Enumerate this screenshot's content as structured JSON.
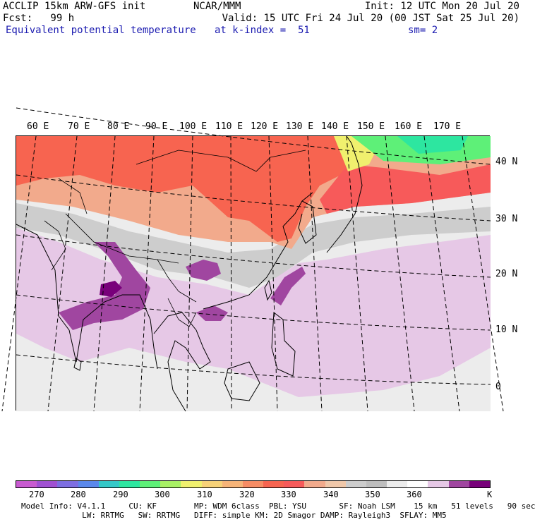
{
  "header": {
    "line1_left": "ACCLIP 15km ARW-GFS init",
    "line1_mid": "NCAR/MMM",
    "line1_right": "Init: 12 UTC Mon 20 Jul 20",
    "line2_left": "Fcst:   99 h",
    "line2_right": "Valid: 15 UTC Fri 24 Jul 20 (00 JST Sat 25 Jul 20)",
    "line3_field": "Equivalent potential temperature",
    "line3_level": "at k-index =  51",
    "line3_smooth": "sm= 2"
  },
  "map": {
    "lon_labels": [
      "60 E",
      "70 E",
      "80 E",
      "90 E",
      "100 E",
      "110 E",
      "120 E",
      "130 E",
      "140 E",
      "150 E",
      "160 E",
      "170 E"
    ],
    "lat_labels": [
      "40 N",
      "30 N",
      "20 N",
      "10 N",
      "0"
    ]
  },
  "colorbar": {
    "colors": [
      "#c85ad0",
      "#a050d2",
      "#7d6ee1",
      "#5a88eb",
      "#34c8c8",
      "#2de6a0",
      "#5ef078",
      "#a8f064",
      "#f0f06e",
      "#f7d278",
      "#f7b478",
      "#f78c64",
      "#f76450",
      "#f75a5a",
      "#f2aa8c",
      "#f0c8aa",
      "#cdcdcd",
      "#bebebe",
      "#ececec",
      "#ffffff",
      "#e6c8e6",
      "#a046a0",
      "#78007a"
    ],
    "tick_labels": [
      "270",
      "280",
      "290",
      "300",
      "310",
      "320",
      "330",
      "340",
      "350",
      "360",
      "K"
    ],
    "units": "K"
  },
  "footer": {
    "line1": "Model Info: V4.1.1     CU: KF        MP: WDM 6class  PBL: YSU       SF: Noah LSM    15 km   51 levels   90 sec",
    "line2": "             LW: RRTMG   SW: RRTMG   DIFF: simple KM: 2D Smagor DAMP: Rayleigh3  SFLAY: MM5"
  }
}
